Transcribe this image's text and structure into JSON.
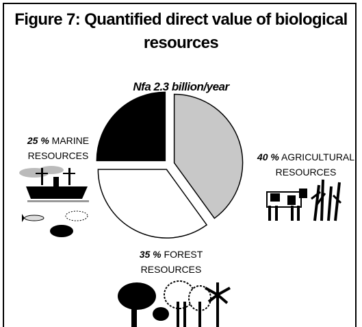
{
  "chart_data": {
    "type": "pie",
    "title": "Figure 7: Quantified direct value of biological resources",
    "subtitle": "Nfa 2.3 billion/year",
    "categories": [
      "AGRICULTURAL RESOURCES",
      "FOREST RESOURCES",
      "MARINE RESOURCES"
    ],
    "values": [
      40,
      35,
      25
    ],
    "value_labels": [
      "40 %",
      "35 %",
      "25 %"
    ],
    "colors": [
      "#c8c8c8",
      "#ffffff",
      "#000000"
    ]
  }
}
